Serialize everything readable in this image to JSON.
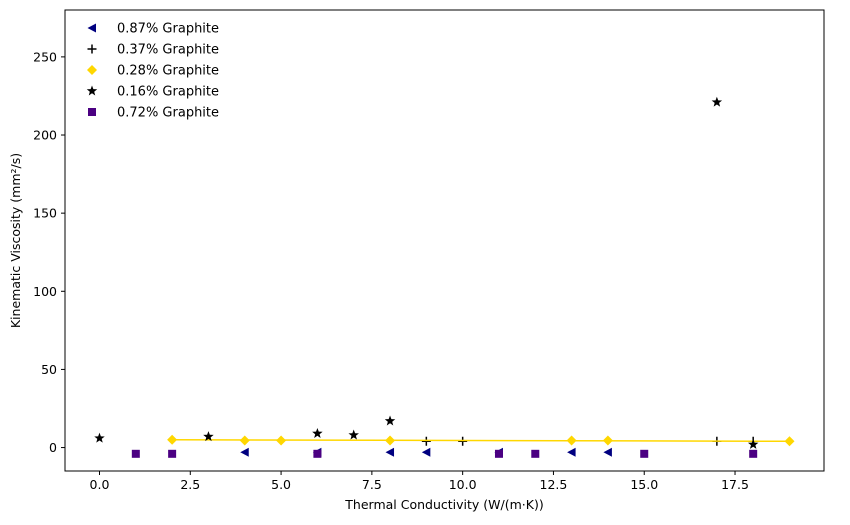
{
  "chart_data": {
    "type": "scatter",
    "xlabel": "Thermal Conductivity (W/(m·K))",
    "ylabel": "Kinematic Viscosity (mm²/s)",
    "xlim": [
      -0.95,
      19.95
    ],
    "ylim": [
      -15,
      280
    ],
    "xticks": [
      0.0,
      2.5,
      5.0,
      7.5,
      10.0,
      12.5,
      15.0,
      17.5
    ],
    "xtick_labels": [
      "0.0",
      "2.5",
      "5.0",
      "7.5",
      "10.0",
      "12.5",
      "15.0",
      "17.5"
    ],
    "yticks": [
      0,
      50,
      100,
      150,
      200,
      250
    ],
    "ytick_labels": [
      "0",
      "50",
      "100",
      "150",
      "200",
      "250"
    ],
    "grid": false,
    "legend_position": "top-left",
    "series": [
      {
        "name": "0.87%  Graphite",
        "marker": "triangle-left",
        "color": "#000080",
        "points": [
          [
            4,
            -3
          ],
          [
            6,
            -3
          ],
          [
            8,
            -3
          ],
          [
            9,
            -3
          ],
          [
            11,
            -3
          ],
          [
            13,
            -3
          ],
          [
            14,
            -3
          ]
        ]
      },
      {
        "name": "0.37%  Graphite",
        "marker": "plus",
        "color": "#000000",
        "points": [
          [
            9,
            4
          ],
          [
            10,
            4
          ],
          [
            17,
            4
          ],
          [
            18,
            4
          ]
        ]
      },
      {
        "name": "0.28%  Graphite",
        "marker": "diamond",
        "color": "#FFD700",
        "points": [
          [
            2,
            5
          ],
          [
            4,
            4.5
          ],
          [
            5,
            4.5
          ],
          [
            8,
            4.5
          ],
          [
            13,
            4.5
          ],
          [
            14,
            4.5
          ],
          [
            19,
            4
          ]
        ],
        "trendline": [
          [
            2,
            5
          ],
          [
            19,
            4
          ]
        ]
      },
      {
        "name": "0.16%  Graphite",
        "marker": "star",
        "color": "#000000",
        "points": [
          [
            0,
            6
          ],
          [
            3,
            7
          ],
          [
            6,
            9
          ],
          [
            7,
            8
          ],
          [
            8,
            17
          ],
          [
            17,
            221
          ],
          [
            18,
            2
          ]
        ]
      },
      {
        "name": "0.72%  Graphite",
        "marker": "square",
        "color": "#4B0082",
        "points": [
          [
            1,
            -4
          ],
          [
            2,
            -4
          ],
          [
            6,
            -4
          ],
          [
            11,
            -4
          ],
          [
            12,
            -4
          ],
          [
            15,
            -4
          ],
          [
            18,
            -4
          ]
        ]
      }
    ]
  }
}
